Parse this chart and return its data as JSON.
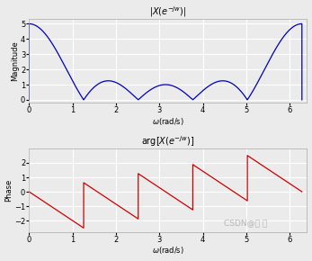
{
  "title_mag": "|X(e$^{-}$jw)|",
  "title_phase": "arg[X(e$^{-}$jw)]",
  "title_mag_math": "$|X(e^{-jw})|$",
  "title_phase_math": "$\\arg[X(e^{-jw})]$",
  "xlabel": "$\\omega$(rad/s)",
  "ylabel_mag": "Magnitude",
  "ylabel_phase": "Phase",
  "xlim": [
    0,
    6.4
  ],
  "ylim_mag": [
    -0.2,
    5.3
  ],
  "ylim_phase": [
    -2.8,
    3.0
  ],
  "line_color_mag": "#0000bb",
  "line_color_phase": "#cc0000",
  "background_color": "#ebebeb",
  "grid_color": "#ffffff",
  "N": 5,
  "fig_width": 3.47,
  "fig_height": 2.9,
  "dpi": 100
}
